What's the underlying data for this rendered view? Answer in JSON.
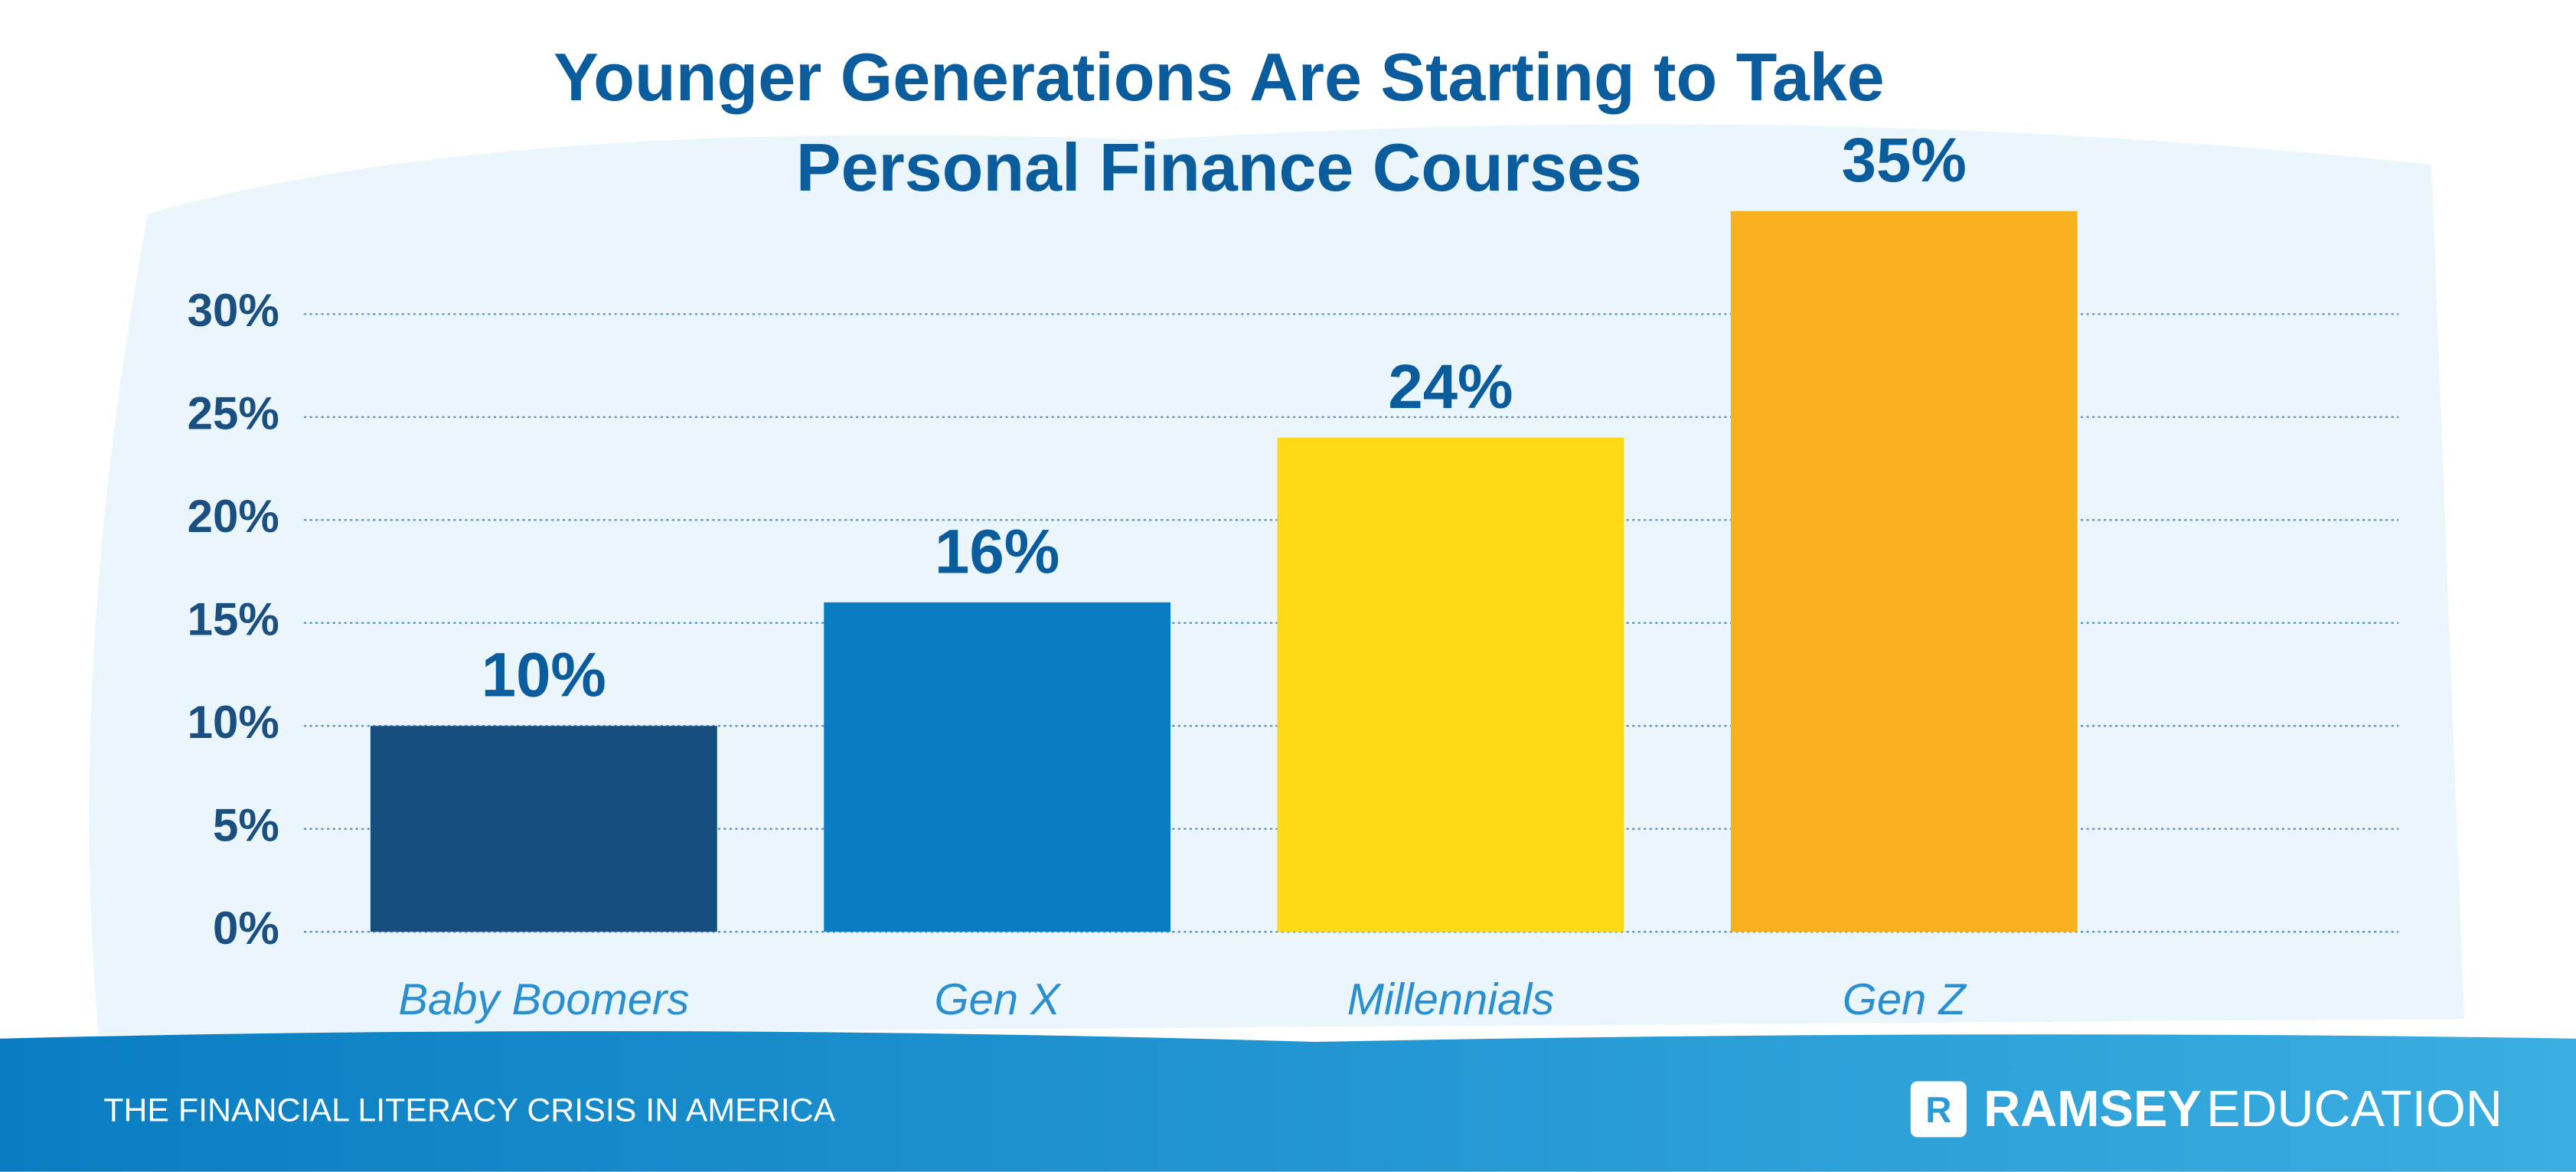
{
  "chart_data": {
    "type": "bar",
    "title": [
      "Younger Generations Are Starting to Take",
      "Personal Finance Courses"
    ],
    "categories": [
      "Baby Boomers",
      "Gen X",
      "Millennials",
      "Gen Z"
    ],
    "values": [
      10,
      16,
      24,
      35
    ],
    "value_labels": [
      "10%",
      "16%",
      "24%",
      "35%"
    ],
    "colors": [
      "#164e80",
      "#0a7dc2",
      "#fdd813",
      "#f9b21d"
    ],
    "ylim": [
      0,
      35
    ],
    "yticks": [
      {
        "value": 0,
        "label": "0%"
      },
      {
        "value": 5,
        "label": "5%"
      },
      {
        "value": 10,
        "label": "10%"
      },
      {
        "value": 15,
        "label": "15%"
      },
      {
        "value": 20,
        "label": "20%"
      },
      {
        "value": 25,
        "label": "25%"
      },
      {
        "value": 30,
        "label": "30%"
      }
    ],
    "grid": true
  },
  "footer": {
    "caption": "THE FINANCIAL LITERACY CRISIS IN AMERICA",
    "brand": [
      "RAMSEY",
      "EDUCATION"
    ]
  }
}
